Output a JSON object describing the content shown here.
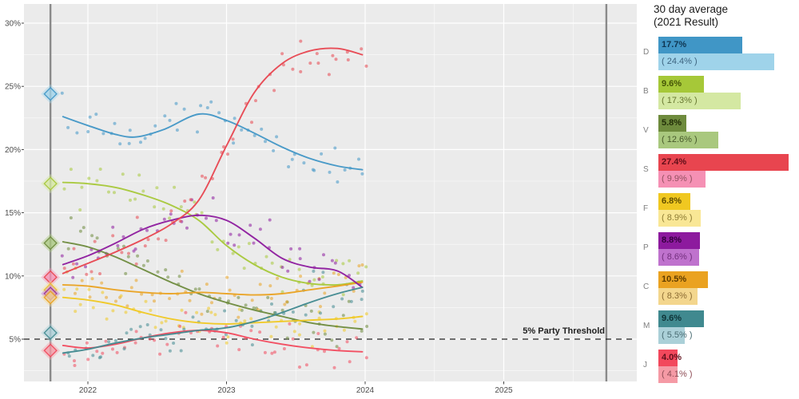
{
  "legend": {
    "title_line1": "30 day average",
    "title_line2": "(2021 Result)"
  },
  "chart_data": {
    "type": "scatter",
    "description": "Poll tracker: scatter of individual polls with smoothed trend lines per party, 2021-2025",
    "x_axis": {
      "tick_labels": [
        "2022",
        "2023",
        "2024",
        "2025"
      ],
      "tick_values": [
        2022,
        2023,
        2024,
        2025
      ],
      "range": [
        2021.54,
        2025.96
      ],
      "minor_ticks": [
        2022.5,
        2023.5,
        2024.5,
        2025.5
      ]
    },
    "y_axis": {
      "tick_labels": [
        "5%",
        "10%",
        "15%",
        "20%",
        "25%",
        "30%"
      ],
      "tick_values": [
        5,
        10,
        15,
        20,
        25,
        30
      ],
      "range": [
        1.6,
        31.5
      ],
      "minor_ticks": [
        2.5,
        7.5,
        12.5,
        17.5,
        22.5,
        27.5
      ]
    },
    "threshold": {
      "value": 5,
      "label": "5% Party Threshold",
      "line_style": "dashed",
      "color": "#222222"
    },
    "event_lines": [
      {
        "year": 2021.73,
        "name": "2021-election"
      },
      {
        "year": 2025.74,
        "name": "scheduled-2025-election"
      }
    ],
    "legend_position": "right",
    "grid": true,
    "panel_color": "#ebebeb",
    "series": [
      {
        "label": "D",
        "color": "#4096c6",
        "light_color": "#9fd3ea",
        "label_color": "#0f3551",
        "result_label_color": "#3c637f",
        "avg_30day": 17.7,
        "avg_label": "17.7%",
        "result_2021": 24.4,
        "result_label": "( 24.4% )",
        "trend": [
          [
            2021.82,
            22.6
          ],
          [
            2022.0,
            21.9
          ],
          [
            2022.2,
            21.2
          ],
          [
            2022.35,
            21.0
          ],
          [
            2022.55,
            21.6
          ],
          [
            2022.8,
            22.8
          ],
          [
            2023.0,
            22.3
          ],
          [
            2023.2,
            21.3
          ],
          [
            2023.4,
            20.2
          ],
          [
            2023.6,
            19.3
          ],
          [
            2023.8,
            18.7
          ],
          [
            2023.98,
            18.4
          ]
        ]
      },
      {
        "label": "B",
        "color": "#a6c838",
        "light_color": "#d4e8a2",
        "label_color": "#465607",
        "result_label_color": "#66762f",
        "avg_30day": 9.6,
        "avg_label": "9.6%",
        "result_2021": 17.3,
        "result_label": "( 17.3% )",
        "trend": [
          [
            2021.82,
            17.4
          ],
          [
            2022.0,
            17.3
          ],
          [
            2022.2,
            17.0
          ],
          [
            2022.4,
            16.4
          ],
          [
            2022.6,
            15.6
          ],
          [
            2022.8,
            14.4
          ],
          [
            2023.0,
            12.4
          ],
          [
            2023.2,
            10.9
          ],
          [
            2023.4,
            9.9
          ],
          [
            2023.6,
            9.4
          ],
          [
            2023.8,
            9.3
          ],
          [
            2023.98,
            9.6
          ]
        ]
      },
      {
        "label": "V",
        "color": "#6e8b3d",
        "light_color": "#a9c87e",
        "label_color": "#222e08",
        "result_label_color": "#46582a",
        "avg_30day": 5.8,
        "avg_label": "5.8%",
        "result_2021": 12.6,
        "result_label": "( 12.6% )",
        "trend": [
          [
            2021.82,
            12.7
          ],
          [
            2022.0,
            12.3
          ],
          [
            2022.2,
            11.5
          ],
          [
            2022.4,
            10.5
          ],
          [
            2022.6,
            9.5
          ],
          [
            2022.8,
            8.6
          ],
          [
            2023.0,
            7.9
          ],
          [
            2023.2,
            7.3
          ],
          [
            2023.4,
            6.8
          ],
          [
            2023.6,
            6.3
          ],
          [
            2023.8,
            6.0
          ],
          [
            2023.98,
            5.8
          ]
        ]
      },
      {
        "label": "S",
        "color": "#e8454f",
        "light_color": "#f590b4",
        "label_color": "#5f0e18",
        "result_label_color": "#91505f",
        "avg_30day": 27.4,
        "avg_label": "27.4%",
        "result_2021": 9.9,
        "result_label": "( 9.9% )",
        "trend": [
          [
            2021.82,
            10.2
          ],
          [
            2022.0,
            11.0
          ],
          [
            2022.2,
            11.9
          ],
          [
            2022.4,
            12.9
          ],
          [
            2022.6,
            14.1
          ],
          [
            2022.8,
            16.0
          ],
          [
            2023.0,
            20.3
          ],
          [
            2023.2,
            24.5
          ],
          [
            2023.4,
            26.8
          ],
          [
            2023.6,
            27.8
          ],
          [
            2023.8,
            28.0
          ],
          [
            2023.98,
            27.5
          ]
        ]
      },
      {
        "label": "F",
        "color": "#f0c821",
        "light_color": "#f9e795",
        "label_color": "#604d00",
        "result_label_color": "#8e7c34",
        "avg_30day": 6.8,
        "avg_label": "6.8%",
        "result_2021": 8.9,
        "result_label": "( 8.9% )",
        "trend": [
          [
            2021.82,
            8.3
          ],
          [
            2022.0,
            8.1
          ],
          [
            2022.2,
            7.7
          ],
          [
            2022.4,
            7.1
          ],
          [
            2022.6,
            6.6
          ],
          [
            2022.8,
            6.3
          ],
          [
            2023.0,
            6.2
          ],
          [
            2023.2,
            6.3
          ],
          [
            2023.4,
            6.4
          ],
          [
            2023.6,
            6.5
          ],
          [
            2023.8,
            6.6
          ],
          [
            2023.98,
            6.8
          ]
        ]
      },
      {
        "label": "P",
        "color": "#8d1a9e",
        "light_color": "#bf72cd",
        "label_color": "#33003d",
        "result_label_color": "#722f7d",
        "avg_30day": 8.8,
        "avg_label": "8.8%",
        "result_2021": 8.6,
        "result_label": "( 8.6% )",
        "trend": [
          [
            2021.82,
            10.9
          ],
          [
            2022.0,
            11.6
          ],
          [
            2022.2,
            12.6
          ],
          [
            2022.4,
            13.7
          ],
          [
            2022.6,
            14.4
          ],
          [
            2022.8,
            14.8
          ],
          [
            2023.0,
            14.4
          ],
          [
            2023.2,
            13.0
          ],
          [
            2023.4,
            11.4
          ],
          [
            2023.6,
            10.7
          ],
          [
            2023.8,
            10.4
          ],
          [
            2023.98,
            9.1
          ]
        ]
      },
      {
        "label": "C",
        "color": "#eaa221",
        "light_color": "#f3d68d",
        "label_color": "#5e3c00",
        "result_label_color": "#8c6c33",
        "avg_30day": 10.5,
        "avg_label": "10.5%",
        "result_2021": 8.3,
        "result_label": "( 8.3% )",
        "trend": [
          [
            2021.82,
            9.3
          ],
          [
            2022.0,
            9.2
          ],
          [
            2022.2,
            8.9
          ],
          [
            2022.4,
            8.7
          ],
          [
            2022.6,
            8.6
          ],
          [
            2022.8,
            8.7
          ],
          [
            2023.0,
            8.6
          ],
          [
            2023.2,
            8.5
          ],
          [
            2023.4,
            8.6
          ],
          [
            2023.6,
            8.9
          ],
          [
            2023.8,
            9.2
          ],
          [
            2023.98,
            9.5
          ]
        ]
      },
      {
        "label": "M",
        "color": "#40898f",
        "light_color": "#abd0d8",
        "label_color": "#0e3337",
        "result_label_color": "#486b72",
        "avg_30day": 9.6,
        "avg_label": "9.6%",
        "result_2021": 5.5,
        "result_label": "( 5.5% )",
        "trend": [
          [
            2021.82,
            3.9
          ],
          [
            2022.0,
            4.2
          ],
          [
            2022.2,
            4.7
          ],
          [
            2022.4,
            5.1
          ],
          [
            2022.6,
            5.4
          ],
          [
            2022.8,
            5.7
          ],
          [
            2023.0,
            5.9
          ],
          [
            2023.2,
            6.4
          ],
          [
            2023.4,
            7.1
          ],
          [
            2023.6,
            7.9
          ],
          [
            2023.8,
            8.6
          ],
          [
            2023.98,
            9.1
          ]
        ]
      },
      {
        "label": "J",
        "color": "#f2485c",
        "light_color": "#f59aa5",
        "label_color": "#60101c",
        "result_label_color": "#8e4c55",
        "avg_30day": 4.0,
        "avg_label": "4.0%",
        "result_2021": 4.1,
        "result_label": "( 4.1% )",
        "trend": [
          [
            2021.82,
            4.5
          ],
          [
            2022.0,
            4.3
          ],
          [
            2022.2,
            4.6
          ],
          [
            2022.4,
            5.1
          ],
          [
            2022.6,
            5.5
          ],
          [
            2022.8,
            5.7
          ],
          [
            2023.0,
            5.5
          ],
          [
            2023.2,
            5.0
          ],
          [
            2023.4,
            4.6
          ],
          [
            2023.6,
            4.3
          ],
          [
            2023.8,
            4.1
          ],
          [
            2023.98,
            4.0
          ]
        ]
      }
    ]
  }
}
